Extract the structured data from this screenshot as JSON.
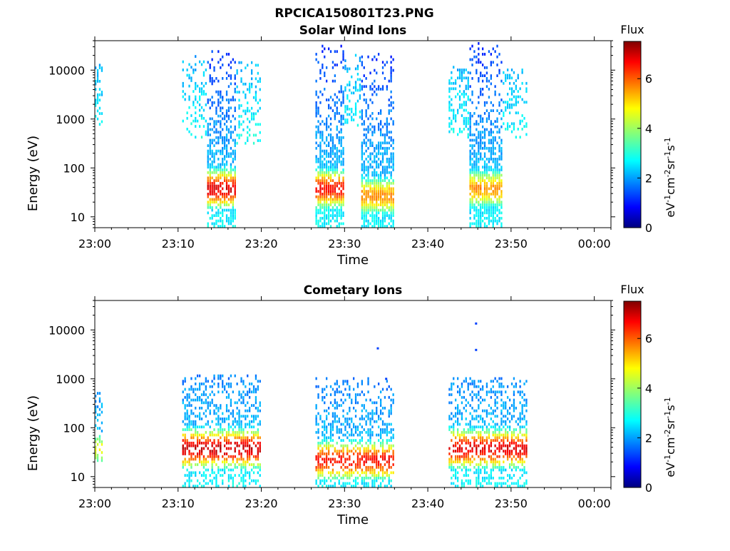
{
  "figure": {
    "title": "RPCICA150801T23.PNG"
  },
  "colorscale": {
    "stops": [
      "#00007f",
      "#0000ff",
      "#007fff",
      "#00ffff",
      "#7fff7f",
      "#ffff00",
      "#ff7f00",
      "#ff0000",
      "#7f0000"
    ]
  },
  "chart_data": [
    {
      "type": "heatmap",
      "title": "Solar Wind Ions",
      "xlabel": "Time",
      "ylabel": "Energy (eV)",
      "x_unit": "minutes after 23:00",
      "xlim": [
        0,
        62
      ],
      "xticks": [
        0,
        10,
        20,
        30,
        40,
        50,
        60
      ],
      "xtick_labels": [
        "23:00",
        "23:10",
        "23:20",
        "23:30",
        "23:40",
        "23:50",
        "00:00"
      ],
      "y_scale": "log",
      "ylim": [
        6,
        40000
      ],
      "yticks": [
        10,
        100,
        1000,
        10000
      ],
      "ytick_labels": [
        "10",
        "100",
        "1000",
        "10000"
      ],
      "colorbar": {
        "label_top": "Flux",
        "range": [
          0,
          7.5
        ],
        "ticks": [
          0,
          2,
          4,
          6
        ],
        "tick_labels": [
          "0",
          "2",
          "4",
          "6"
        ]
      },
      "regions": [
        {
          "t_start": 0.0,
          "t_end": 0.8,
          "e_low": 500,
          "e_high": 12000,
          "peak_energy": 3000,
          "peak_flux": 1.8,
          "density": 0.4
        },
        {
          "t_start": 10.5,
          "t_end": 13.5,
          "e_low": 400,
          "e_high": 20000,
          "peak_energy": 4000,
          "peak_flux": 1.6,
          "density": 0.3
        },
        {
          "t_start": 13.5,
          "t_end": 17.0,
          "e_low": 6,
          "e_high": 25000,
          "peak_energy": 35,
          "peak_flux": 6.8,
          "density": 0.75
        },
        {
          "t_start": 17.0,
          "t_end": 20.0,
          "e_low": 300,
          "e_high": 15000,
          "peak_energy": 3000,
          "peak_flux": 1.6,
          "density": 0.3
        },
        {
          "t_start": 26.5,
          "t_end": 30.0,
          "e_low": 6,
          "e_high": 30000,
          "peak_energy": 35,
          "peak_flux": 6.5,
          "density": 0.8
        },
        {
          "t_start": 30.0,
          "t_end": 32.0,
          "e_low": 700,
          "e_high": 20000,
          "peak_energy": 4000,
          "peak_flux": 1.5,
          "density": 0.3
        },
        {
          "t_start": 32.0,
          "t_end": 36.0,
          "e_low": 6,
          "e_high": 20000,
          "peak_energy": 25,
          "peak_flux": 5.5,
          "density": 0.8
        },
        {
          "t_start": 42.5,
          "t_end": 45.0,
          "e_low": 400,
          "e_high": 12000,
          "peak_energy": 3000,
          "peak_flux": 1.6,
          "density": 0.4
        },
        {
          "t_start": 45.0,
          "t_end": 49.0,
          "e_low": 6,
          "e_high": 35000,
          "peak_energy": 35,
          "peak_flux": 5.5,
          "density": 0.8
        },
        {
          "t_start": 49.0,
          "t_end": 52.0,
          "e_low": 400,
          "e_high": 10000,
          "peak_energy": 3000,
          "peak_flux": 1.5,
          "density": 0.35
        }
      ]
    },
    {
      "type": "heatmap",
      "title": "Cometary Ions",
      "xlabel": "Time",
      "ylabel": "Energy (eV)",
      "x_unit": "minutes after 23:00",
      "xlim": [
        0,
        62
      ],
      "xticks": [
        0,
        10,
        20,
        30,
        40,
        50,
        60
      ],
      "xtick_labels": [
        "23:00",
        "23:10",
        "23:20",
        "23:30",
        "23:40",
        "23:50",
        "00:00"
      ],
      "y_scale": "log",
      "ylim": [
        6,
        40000
      ],
      "yticks": [
        10,
        100,
        1000,
        10000
      ],
      "ytick_labels": [
        "10",
        "100",
        "1000",
        "10000"
      ],
      "colorbar": {
        "label_top": "Flux",
        "range": [
          0,
          7.5
        ],
        "ticks": [
          0,
          2,
          4,
          6
        ],
        "tick_labels": [
          "0",
          "2",
          "4",
          "6"
        ]
      },
      "regions": [
        {
          "t_start": 0.0,
          "t_end": 0.8,
          "e_low": 20,
          "e_high": 500,
          "peak_energy": 35,
          "peak_flux": 4.5,
          "density": 0.5
        },
        {
          "t_start": 10.5,
          "t_end": 20.0,
          "e_low": 6,
          "e_high": 1200,
          "peak_energy": 35,
          "peak_flux": 7.0,
          "density": 0.55
        },
        {
          "t_start": 26.5,
          "t_end": 36.0,
          "e_low": 6,
          "e_high": 1000,
          "peak_energy": 20,
          "peak_flux": 6.5,
          "density": 0.55
        },
        {
          "t_start": 42.5,
          "t_end": 52.0,
          "e_low": 6,
          "e_high": 1000,
          "peak_energy": 35,
          "peak_flux": 6.8,
          "density": 0.55
        }
      ],
      "points": [
        {
          "t": 34.0,
          "energy": 4200,
          "flux": 1.4
        },
        {
          "t": 35.0,
          "energy": 1000,
          "flux": 1.4
        },
        {
          "t": 45.8,
          "energy": 13500,
          "flux": 1.4
        },
        {
          "t": 45.8,
          "energy": 3900,
          "flux": 1.4
        }
      ]
    }
  ]
}
